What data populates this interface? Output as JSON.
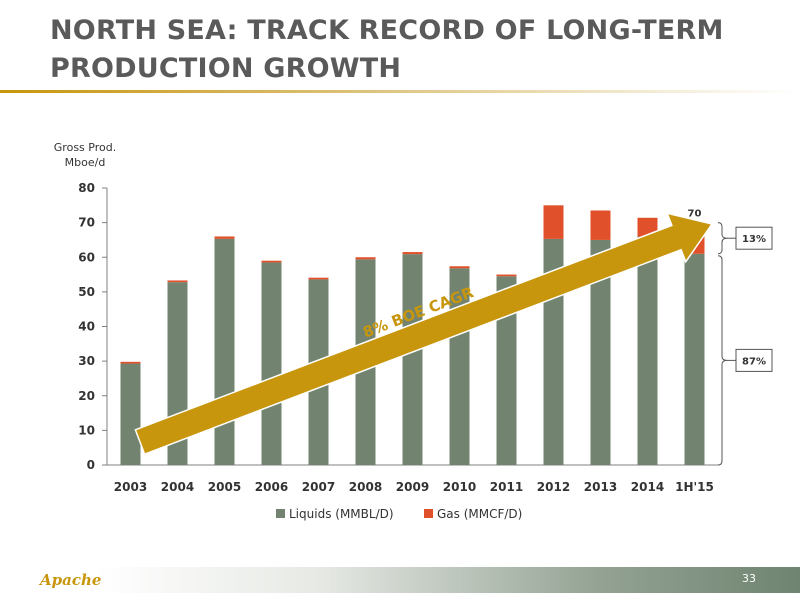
{
  "title": "NORTH SEA: TRACK RECORD OF LONG-TERM PRODUCTION GROWTH",
  "logo": "Apache",
  "page_number": "33",
  "chart_data": {
    "type": "bar",
    "stacked": true,
    "title": "",
    "ylabel_lines": [
      "Gross Prod.",
      "Mboe/d"
    ],
    "ylim": [
      0,
      80
    ],
    "yticks": [
      0,
      10,
      20,
      30,
      40,
      50,
      60,
      70,
      80
    ],
    "categories": [
      "2003",
      "2004",
      "2005",
      "2006",
      "2007",
      "2008",
      "2009",
      "2010",
      "2011",
      "2012",
      "2013",
      "2014",
      "1H'15"
    ],
    "series": [
      {
        "name": "Liquids (MMBL/D)",
        "color": "#728470",
        "values": [
          29.3,
          52.8,
          65.3,
          58.5,
          53.6,
          59.4,
          60.9,
          56.8,
          54.5,
          65.3,
          65.0,
          66.0,
          61.0
        ]
      },
      {
        "name": "Gas (MMCF/D)",
        "color": "#e0502a",
        "values": [
          0.5,
          0.5,
          0.7,
          0.5,
          0.5,
          0.6,
          0.6,
          0.6,
          0.5,
          9.7,
          8.5,
          5.4,
          9.0
        ]
      }
    ],
    "legend_position": "bottom",
    "grid": false,
    "annotations": {
      "total_label": "70",
      "arrow_text": "8% BOE CAGR",
      "arrow_color": "#c8960c",
      "gas_share": "13%",
      "liquids_share": "87%"
    }
  }
}
